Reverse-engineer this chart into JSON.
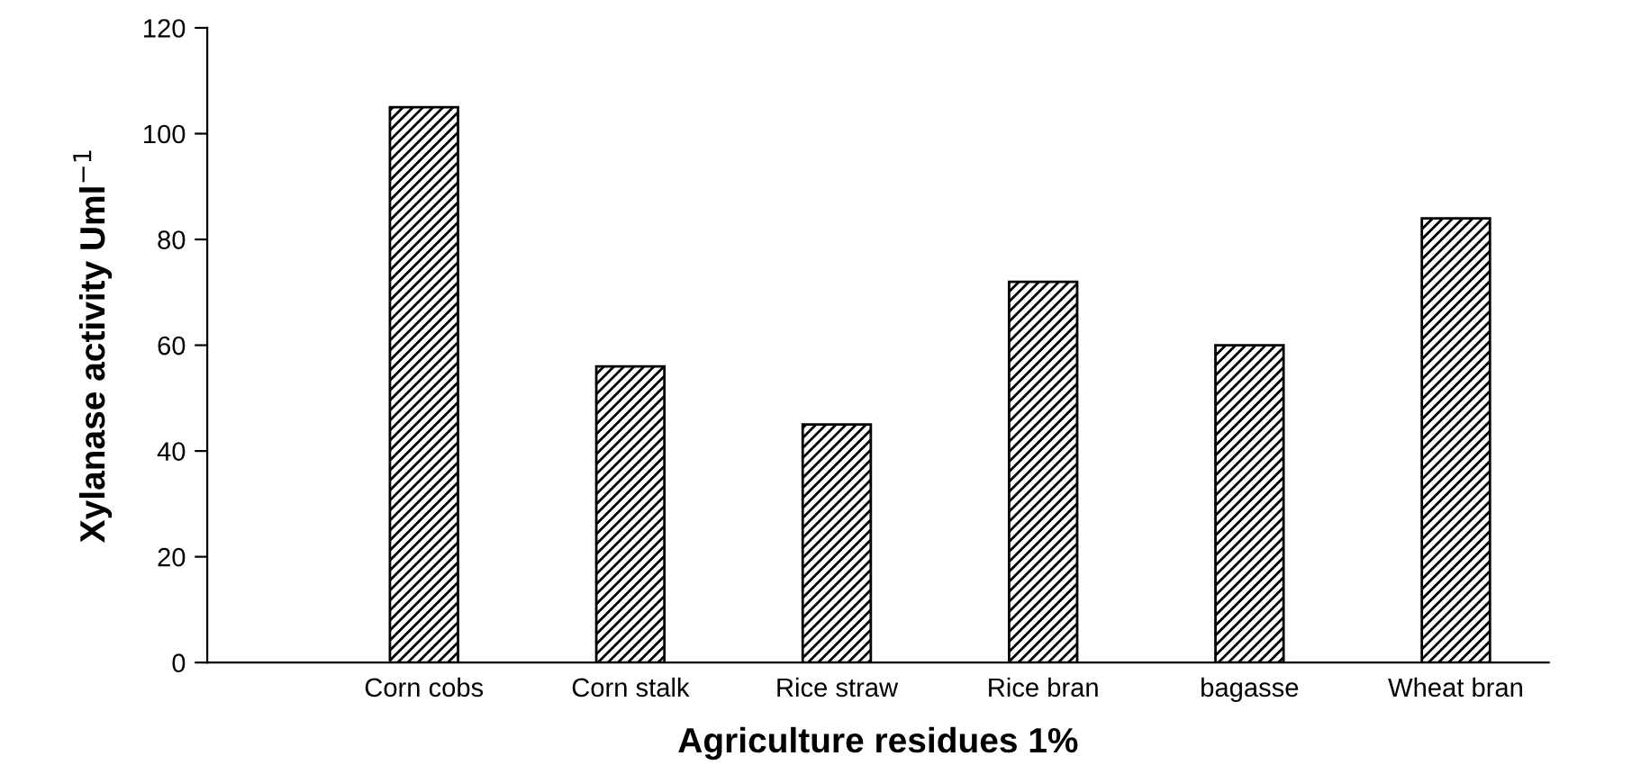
{
  "chart_data": {
    "type": "bar",
    "categories": [
      "Corn cobs",
      "Corn stalk",
      "Rice straw",
      "Rice bran",
      "bagasse",
      "Wheat bran"
    ],
    "values": [
      105,
      56,
      45,
      72,
      60,
      84
    ],
    "color": "#000000",
    "xlabel": "Agriculture residues 1%",
    "ylabel": "Xylanase activity Uml$^{−1}$",
    "ylim": [
      0,
      120
    ],
    "yticks": [
      0,
      20,
      40,
      60,
      80,
      100,
      120
    ],
    "grid": false,
    "legend": false
  }
}
